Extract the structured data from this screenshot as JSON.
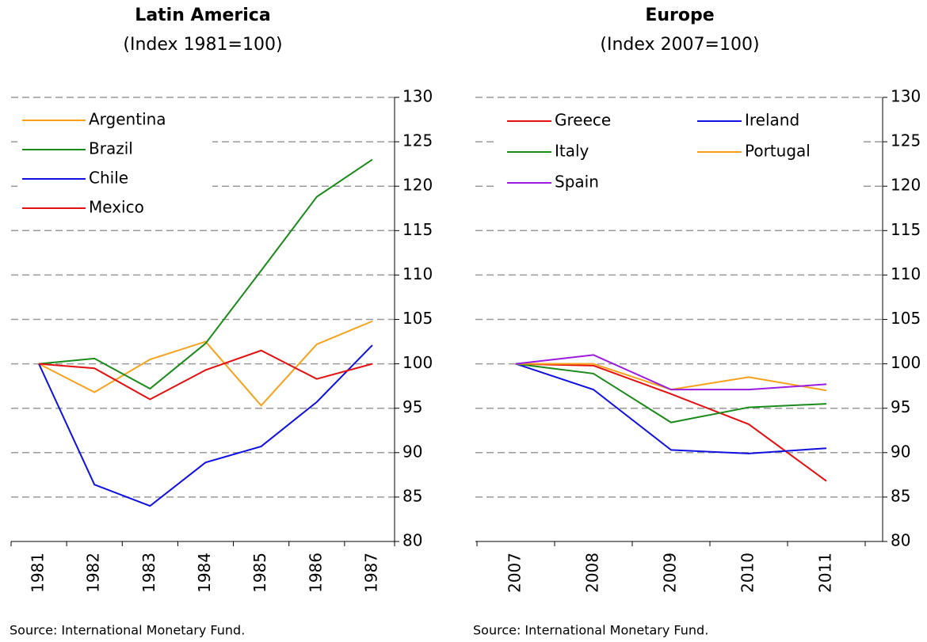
{
  "chart_data": [
    {
      "type": "line",
      "title": "Latin America",
      "subtitle": "(Index 1981=100)",
      "note": "Source: International Monetary Fund.",
      "categories": [
        "1981",
        "1982",
        "1983",
        "1984",
        "1985",
        "1986",
        "1987"
      ],
      "ylim": [
        80,
        130
      ],
      "yticks": [
        80,
        85,
        90,
        95,
        100,
        105,
        110,
        115,
        120,
        125,
        130
      ],
      "grid": true,
      "legend": "upper left",
      "legend_columns": 1,
      "series": [
        {
          "name": "Argentina",
          "color": "#f7a11a",
          "values": [
            100,
            96.8,
            100.5,
            102.5,
            95.3,
            102.2,
            104.8
          ]
        },
        {
          "name": "Brazil",
          "color": "#1a8a1a",
          "values": [
            100,
            100.6,
            97.2,
            102.3,
            110.5,
            118.8,
            123
          ]
        },
        {
          "name": "Chile",
          "color": "#1010e0",
          "values": [
            100,
            86.4,
            84,
            88.9,
            90.7,
            95.7,
            102.1
          ]
        },
        {
          "name": "Mexico",
          "color": "#e41010",
          "values": [
            100,
            99.5,
            96,
            99.3,
            101.5,
            98.3,
            100
          ]
        }
      ]
    },
    {
      "type": "line",
      "title": "Europe",
      "subtitle": "(Index 2007=100)",
      "note": "Source: International Monetary Fund.",
      "categories": [
        "2007",
        "2008",
        "2009",
        "2010",
        "2011"
      ],
      "ylim": [
        80,
        130
      ],
      "yticks": [
        80,
        85,
        90,
        95,
        100,
        105,
        110,
        115,
        120,
        125,
        130
      ],
      "grid": true,
      "legend": "upper left",
      "legend_columns": 2,
      "series": [
        {
          "name": "Greece",
          "color": "#e41010",
          "values": [
            100,
            99.8,
            96.6,
            93.2,
            86.8
          ]
        },
        {
          "name": "Ireland",
          "color": "#1010e0",
          "values": [
            100,
            97.1,
            90.3,
            89.9,
            90.5
          ]
        },
        {
          "name": "Italy",
          "color": "#1a8a1a",
          "values": [
            100,
            98.9,
            93.4,
            95.1,
            95.5
          ]
        },
        {
          "name": "Portugal",
          "color": "#f7a11a",
          "values": [
            100,
            100,
            97.1,
            98.5,
            97
          ]
        },
        {
          "name": "Spain",
          "color": "#9b1ae0",
          "values": [
            100,
            101,
            97.1,
            97.1,
            97.7
          ]
        }
      ]
    }
  ]
}
